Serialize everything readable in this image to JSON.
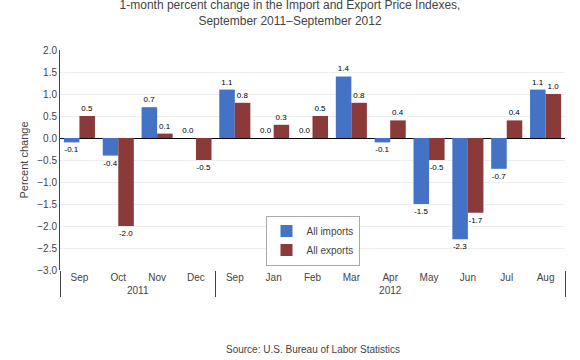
{
  "chart_data": {
    "type": "bar",
    "title": "1-month percent change in the Import and Export Price Indexes,\nSeptember 2011–September 2012",
    "y_label": "Percent change",
    "categories": [
      "Sep",
      "Oct",
      "Nov",
      "Dec",
      "Jan",
      "Feb",
      "Mar",
      "Apr",
      "May",
      "Jun",
      "Jul",
      "Aug",
      "Sep"
    ],
    "category_groups": [
      "2011",
      "2011",
      "2011",
      "2011",
      "2012",
      "2012",
      "2012",
      "2012",
      "2012",
      "2012",
      "2012",
      "2012",
      "2012"
    ],
    "series": [
      {
        "name": "All imports",
        "color": "#4472C4",
        "values": [
          -0.1,
          -0.4,
          0.7,
          0.0,
          0.0,
          0.0,
          1.4,
          -0.1,
          -1.5,
          -2.3,
          -0.7,
          1.1,
          1.1
        ],
        "value_labels": [
          "-0.1",
          "-0.4",
          "0.7",
          "0.0",
          "0.0",
          "0.0",
          "1.4",
          "-0.1",
          "-1.5",
          "-2.3",
          "-0.7",
          "1.1",
          "1.1"
        ]
      },
      {
        "name": "All exports",
        "color": "#8B3A3A",
        "values": [
          0.5,
          -2.0,
          0.1,
          -0.5,
          0.3,
          0.5,
          0.8,
          0.4,
          -0.5,
          -1.7,
          0.4,
          1.0,
          0.8
        ],
        "value_labels": [
          "0.5",
          "-2.0",
          "0.1",
          "-0.5",
          "0.3",
          "0.5",
          "0.8",
          "0.4",
          "-0.5",
          "-1.7",
          "0.4",
          "1.0",
          "0.8"
        ]
      }
    ],
    "ylim": [
      -3.0,
      2.0
    ],
    "yticks": [
      {
        "value": -3.0,
        "label": "−3.0"
      },
      {
        "value": -2.5,
        "label": "−2.5"
      },
      {
        "value": -2.0,
        "label": "−2.0"
      },
      {
        "value": -1.5,
        "label": "−1.5"
      },
      {
        "value": -1.0,
        "label": "−1.0"
      },
      {
        "value": -0.5,
        "label": "−0.5"
      },
      {
        "value": 0.0,
        "label": "0.0"
      },
      0.5,
      {
        "value": 1.0,
        "label": "1.0"
      },
      1.5,
      {
        "value": 2.0,
        "label": "2.0"
      }
    ],
    "grid": true,
    "legend": "bottom",
    "data_labels": true,
    "annotations": [
      "Source: U.S. Bureau of Labor Statistics"
    ]
  }
}
